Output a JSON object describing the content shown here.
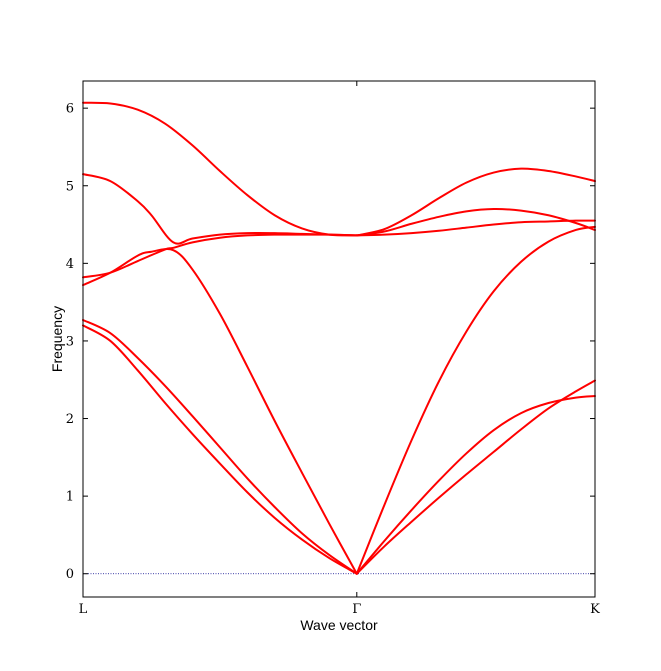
{
  "chart_data": {
    "type": "line",
    "title": "",
    "xlabel": "Wave vector",
    "ylabel": "Frequency",
    "x_ticks": [
      {
        "label": "L",
        "x": 0
      },
      {
        "label": "Γ",
        "x": 1.0
      },
      {
        "label": "K",
        "x": 1.87
      }
    ],
    "ylim": [
      -0.3,
      6.35
    ],
    "xlim": [
      0,
      1.87
    ],
    "y_ticks": [
      0,
      1,
      2,
      3,
      4,
      5,
      6
    ],
    "zero_line": {
      "y": 0,
      "color": "#00008b",
      "style": "dotted"
    },
    "line_color": "#ff0000",
    "grid": false,
    "series": [
      {
        "x": [
          0,
          0.1,
          0.2,
          0.3,
          0.4,
          0.5,
          0.6,
          0.7,
          0.8,
          0.9,
          1.0
        ],
        "y": [
          3.2,
          3.0,
          2.62,
          2.2,
          1.8,
          1.42,
          1.05,
          0.72,
          0.44,
          0.2,
          0.0
        ]
      },
      {
        "x": [
          0,
          0.1,
          0.2,
          0.3,
          0.4,
          0.5,
          0.6,
          0.7,
          0.8,
          0.9,
          1.0
        ],
        "y": [
          3.27,
          3.1,
          2.78,
          2.42,
          2.03,
          1.63,
          1.23,
          0.86,
          0.52,
          0.24,
          0.0
        ]
      },
      {
        "x": [
          0,
          0.1,
          0.2,
          0.25,
          0.33,
          0.4,
          0.5,
          0.6,
          0.7,
          0.8,
          0.9,
          1.0
        ],
        "y": [
          3.72,
          3.88,
          4.1,
          4.15,
          4.17,
          3.92,
          3.35,
          2.67,
          1.97,
          1.3,
          0.64,
          0.0
        ]
      },
      {
        "x": [
          0,
          0.1,
          0.2,
          0.3,
          0.33,
          0.4,
          0.5,
          0.6,
          0.7,
          0.8,
          0.9,
          1.0
        ],
        "y": [
          3.82,
          3.88,
          4.03,
          4.18,
          4.2,
          4.27,
          4.33,
          4.36,
          4.37,
          4.37,
          4.37,
          4.36
        ]
      },
      {
        "x": [
          0,
          0.1,
          0.2,
          0.25,
          0.33,
          0.4,
          0.5,
          0.6,
          0.7,
          0.8,
          0.9,
          1.0
        ],
        "y": [
          5.15,
          5.06,
          4.8,
          4.62,
          4.27,
          4.32,
          4.37,
          4.39,
          4.39,
          4.38,
          4.37,
          4.36
        ]
      },
      {
        "x": [
          0,
          0.1,
          0.2,
          0.3,
          0.4,
          0.5,
          0.6,
          0.7,
          0.8,
          0.9,
          1.0
        ],
        "y": [
          6.07,
          6.06,
          5.98,
          5.8,
          5.52,
          5.19,
          4.88,
          4.62,
          4.45,
          4.37,
          4.36
        ]
      },
      {
        "x": [
          1.0,
          1.1,
          1.2,
          1.3,
          1.4,
          1.5,
          1.6,
          1.7,
          1.8,
          1.87
        ],
        "y": [
          0.0,
          0.42,
          0.82,
          1.2,
          1.55,
          1.85,
          2.07,
          2.2,
          2.27,
          2.29
        ]
      },
      {
        "x": [
          1.0,
          1.1,
          1.2,
          1.3,
          1.4,
          1.5,
          1.6,
          1.7,
          1.8,
          1.87
        ],
        "y": [
          0.0,
          0.35,
          0.67,
          0.98,
          1.28,
          1.57,
          1.86,
          2.13,
          2.35,
          2.49
        ]
      },
      {
        "x": [
          1.0,
          1.1,
          1.2,
          1.3,
          1.4,
          1.5,
          1.6,
          1.7,
          1.8,
          1.87
        ],
        "y": [
          0.0,
          0.88,
          1.72,
          2.48,
          3.12,
          3.64,
          4.02,
          4.28,
          4.43,
          4.47
        ]
      },
      {
        "x": [
          1.0,
          1.1,
          1.2,
          1.3,
          1.4,
          1.5,
          1.6,
          1.7,
          1.8,
          1.87
        ],
        "y": [
          4.36,
          4.37,
          4.39,
          4.42,
          4.46,
          4.5,
          4.53,
          4.54,
          4.55,
          4.55
        ]
      },
      {
        "x": [
          1.0,
          1.1,
          1.2,
          1.3,
          1.4,
          1.5,
          1.6,
          1.7,
          1.8,
          1.87
        ],
        "y": [
          4.36,
          4.41,
          4.51,
          4.6,
          4.67,
          4.7,
          4.68,
          4.62,
          4.52,
          4.43
        ]
      },
      {
        "x": [
          1.0,
          1.1,
          1.2,
          1.3,
          1.4,
          1.5,
          1.6,
          1.7,
          1.8,
          1.87
        ],
        "y": [
          4.36,
          4.44,
          4.62,
          4.84,
          5.04,
          5.17,
          5.22,
          5.19,
          5.12,
          5.06
        ]
      }
    ]
  }
}
